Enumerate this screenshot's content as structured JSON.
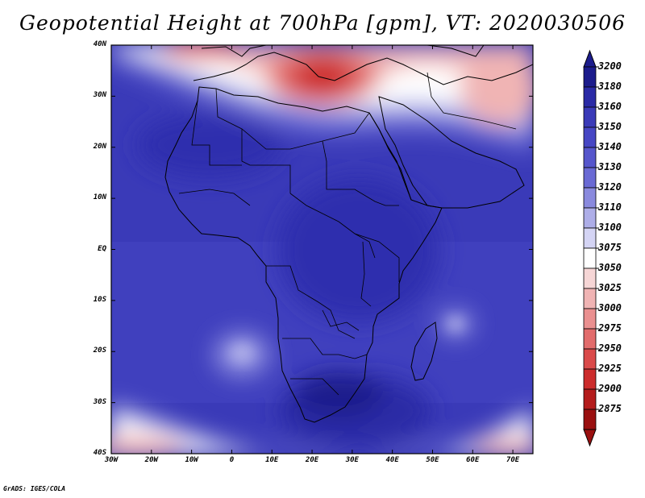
{
  "title": "Geopotential Height at 700hPa [gpm], VT: 2020030506",
  "credit": "GrADS: IGES/COLA",
  "axes": {
    "lat_labels": [
      "40N",
      "30N",
      "20N",
      "10N",
      "EQ",
      "10S",
      "20S",
      "30S",
      "40S"
    ],
    "lat_values": [
      40,
      30,
      20,
      10,
      0,
      -10,
      -20,
      -30,
      -40
    ],
    "lon_labels": [
      "30W",
      "20W",
      "10W",
      "0",
      "10E",
      "20E",
      "30E",
      "40E",
      "50E",
      "60E",
      "70E"
    ],
    "lon_values": [
      -30,
      -20,
      -10,
      0,
      10,
      20,
      30,
      40,
      50,
      60,
      70
    ]
  },
  "colorbar": {
    "levels": [
      "3200",
      "3180",
      "3160",
      "3150",
      "3140",
      "3130",
      "3120",
      "3110",
      "3100",
      "3075",
      "3050",
      "3025",
      "3000",
      "2975",
      "2950",
      "2925",
      "2900",
      "2875"
    ],
    "colors": [
      "#1c1c8c",
      "#2a2aa6",
      "#3a3ab8",
      "#4646c4",
      "#5656cc",
      "#6a6ad4",
      "#8a8ade",
      "#aeaee8",
      "#d4d4f4",
      "#ffffff",
      "#f6d6d6",
      "#f0b4b4",
      "#ea9090",
      "#e26c6c",
      "#da4a4a",
      "#cc2c2c",
      "#b41c1c",
      "#9a1010"
    ]
  }
}
